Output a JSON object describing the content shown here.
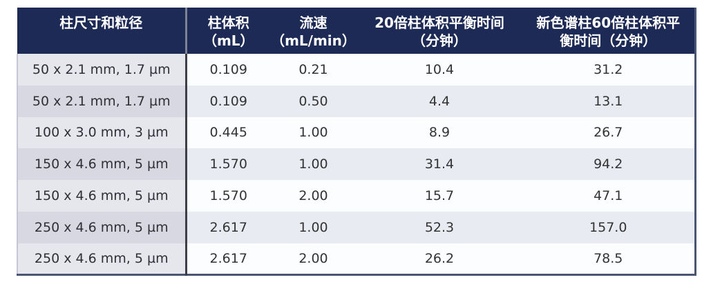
{
  "chart_data": {
    "type": "table",
    "title": "",
    "columns": [
      {
        "line1": "柱尺寸和粒径",
        "line2": "",
        "full": "柱尺寸和粒径"
      },
      {
        "line1": "柱体积",
        "line2": "（mL）",
        "full": "柱体积（mL）"
      },
      {
        "line1": "流速",
        "line2": "（mL/min）",
        "full": "流速（mL/min）"
      },
      {
        "line1": "20倍柱体积平衡时间",
        "line2": "（分钟）",
        "full": "20倍柱体积平衡时间（分钟）"
      },
      {
        "line1": "新色谱柱60倍柱体积平",
        "line2": "衡时间（分钟）",
        "full": "新色谱柱60倍柱体积平衡时间（分钟）"
      }
    ],
    "rows": [
      [
        "50 x 2.1 mm, 1.7 µm",
        "0.109",
        "0.21",
        "10.4",
        "31.2"
      ],
      [
        "50 x 2.1 mm, 1.7 µm",
        "0.109",
        "0.50",
        "4.4",
        "13.1"
      ],
      [
        "100 x 3.0 mm, 3 µm",
        "0.445",
        "1.00",
        "8.9",
        "26.7"
      ],
      [
        "150 x 4.6 mm, 5 µm",
        "1.570",
        "1.00",
        "31.4",
        "94.2"
      ],
      [
        "150 x 4.6 mm, 5 µm",
        "1.570",
        "2.00",
        "15.7",
        "47.1"
      ],
      [
        "250 x 4.6 mm, 5 µm",
        "2.617",
        "1.00",
        "52.3",
        "157.0"
      ],
      [
        "250 x 4.6 mm, 5 µm",
        "2.617",
        "2.00",
        "26.2",
        "78.5"
      ]
    ]
  },
  "colors": {
    "header_bg": "#1d2a55",
    "header_text": "#ffffff",
    "outer_border": "#4a5474",
    "col1_divider_header": "#7d8295",
    "col1_divider_body": "#3e3e48",
    "col1_left_border": "#c5c5d6",
    "col1_row_odd_bg": "#e6e6ed",
    "col1_row_even_bg": "#d8d8e2",
    "data_row_odd_bg": "#fcfdfe",
    "data_row_even_bg": "#e9ebf2",
    "body_text": "#333333"
  }
}
